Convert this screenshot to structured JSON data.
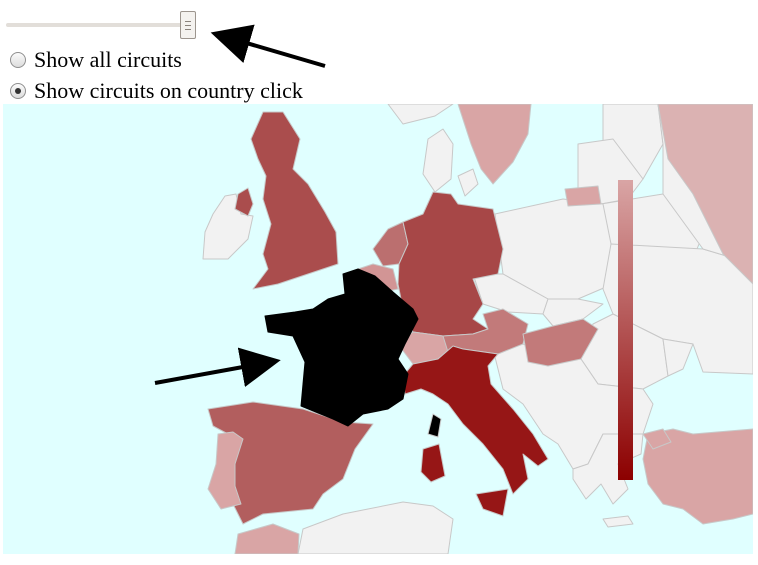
{
  "slider": {
    "value_fraction": 0.96
  },
  "options": [
    {
      "label": "Show all circuits",
      "checked": false
    },
    {
      "label": "Show circuits on country click",
      "checked": true
    }
  ],
  "colors": {
    "sea": "#e0ffff",
    "land_no_data": "#f2f2f2",
    "selected_country": "#000000",
    "scale_low": "#d9a5a5",
    "scale_high": "#8c0000",
    "arrow": "#000000"
  },
  "map": {
    "selected_country": "France",
    "legend": {
      "type": "vertical-gradient",
      "labels": []
    },
    "shaded_countries": [
      {
        "name": "United Kingdom",
        "level": 0.55
      },
      {
        "name": "Ireland",
        "level": 0.0
      },
      {
        "name": "Northern Ireland",
        "level": 0.55
      },
      {
        "name": "Netherlands",
        "level": 0.45
      },
      {
        "name": "Belgium",
        "level": 0.25
      },
      {
        "name": "Germany",
        "level": 0.6
      },
      {
        "name": "Switzerland",
        "level": 0.15
      },
      {
        "name": "Austria",
        "level": 0.35
      },
      {
        "name": "Hungary",
        "level": 0.4
      },
      {
        "name": "Italy",
        "level": 0.95
      },
      {
        "name": "Spain",
        "level": 0.5
      },
      {
        "name": "Portugal",
        "level": 0.2
      },
      {
        "name": "Sweden",
        "level": 0.2
      },
      {
        "name": "Russia",
        "level": 0.15
      },
      {
        "name": "Turkey",
        "level": 0.3
      },
      {
        "name": "Monaco",
        "level": 0.9
      },
      {
        "name": "Latvia",
        "level": 0.2
      },
      {
        "name": "Morocco",
        "level": 0.2
      }
    ]
  }
}
